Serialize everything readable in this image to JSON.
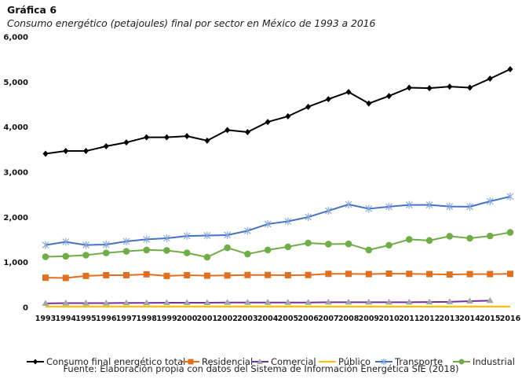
{
  "header": {
    "title": "Gráfica 6",
    "subtitle": "Consumo energético (petajoules) final por sector en México de 1993 a 2016"
  },
  "source": "Fuente: Elaboración propia con datos del Sistema de Información Energética SIE (2018)",
  "chart_data": {
    "type": "line",
    "title": "Consumo energético (petajoules) final por sector en México de 1993 a 2016",
    "xlabel": "",
    "ylabel": "",
    "ylim": [
      0,
      6000
    ],
    "yticks": [
      0,
      1000,
      2000,
      3000,
      4000,
      5000,
      6000
    ],
    "ytick_labels": [
      "0",
      "1,000",
      "2,000",
      "3,000",
      "4,000",
      "5,000",
      "6,000"
    ],
    "grid": false,
    "legend_position": "bottom",
    "x": [
      "1993",
      "1994",
      "1995",
      "1996",
      "1997",
      "1998",
      "1999",
      "2000",
      "2001",
      "2002",
      "2003",
      "2004",
      "2005",
      "2006",
      "2007",
      "2008",
      "2009",
      "2010",
      "2011",
      "2012",
      "2013",
      "2014",
      "2015",
      "2016"
    ],
    "series": [
      {
        "name": "Consumo final energético total",
        "color": "#000000",
        "marker": "diamond",
        "values": [
          3410,
          3470,
          3470,
          3575,
          3660,
          3775,
          3775,
          3800,
          3700,
          3935,
          3890,
          4115,
          4240,
          4450,
          4620,
          4780,
          4525,
          4690,
          4875,
          4865,
          4900,
          4875,
          5075,
          5285
        ]
      },
      {
        "name": "Residencial",
        "color": "#E07020",
        "marker": "square",
        "values": [
          660,
          655,
          700,
          715,
          715,
          735,
          700,
          715,
          705,
          710,
          720,
          720,
          715,
          720,
          745,
          745,
          740,
          750,
          745,
          740,
          730,
          740,
          740,
          745
        ]
      },
      {
        "name": "Comercial",
        "color": "#7030A0",
        "marker": "triangle",
        "values": [
          90,
          95,
          95,
          95,
          100,
          100,
          105,
          105,
          105,
          110,
          110,
          110,
          110,
          110,
          115,
          115,
          115,
          115,
          115,
          120,
          125,
          140,
          150,
          null
        ]
      },
      {
        "name": "Público",
        "color": "#FFC000",
        "marker": "none",
        "values": [
          20,
          20,
          20,
          20,
          20,
          20,
          20,
          20,
          20,
          20,
          20,
          20,
          20,
          20,
          20,
          20,
          20,
          20,
          20,
          20,
          20,
          20,
          20,
          20
        ]
      },
      {
        "name": "Transporte",
        "color": "#4472C4",
        "marker": "star",
        "values": [
          1385,
          1455,
          1385,
          1395,
          1465,
          1510,
          1535,
          1585,
          1595,
          1605,
          1700,
          1850,
          1910,
          2005,
          2145,
          2285,
          2190,
          2235,
          2275,
          2275,
          2240,
          2235,
          2355,
          2460
        ]
      },
      {
        "name": "Industrial",
        "color": "#70AD47",
        "marker": "circle",
        "values": [
          1125,
          1135,
          1160,
          1210,
          1245,
          1275,
          1265,
          1210,
          1115,
          1325,
          1185,
          1275,
          1345,
          1430,
          1405,
          1410,
          1275,
          1380,
          1510,
          1485,
          1580,
          1535,
          1585,
          1665
        ]
      }
    ]
  }
}
